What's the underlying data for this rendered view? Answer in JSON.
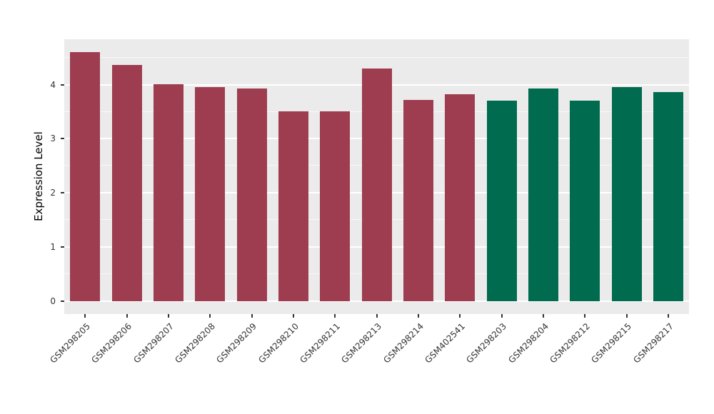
{
  "chart_data": {
    "type": "bar",
    "title": "",
    "xlabel": "",
    "ylabel": "Expression Level",
    "ylim": [
      -0.24,
      4.84
    ],
    "yticks": [
      0,
      1,
      2,
      3,
      4
    ],
    "yticks_minor": [
      0.5,
      1.5,
      2.5,
      3.5,
      4.5
    ],
    "grid": "on",
    "legend": "none",
    "panel_bg": "#ebebeb",
    "grid_color": "#ffffff",
    "bar_width_fraction": 0.72,
    "groups": {
      "red": "#9e3d50",
      "green": "#006b4e"
    },
    "bars": [
      {
        "label": "GSM298205",
        "value": 4.6,
        "group": "red"
      },
      {
        "label": "GSM298206",
        "value": 4.37,
        "group": "red"
      },
      {
        "label": "GSM298207",
        "value": 4.01,
        "group": "red"
      },
      {
        "label": "GSM298208",
        "value": 3.96,
        "group": "red"
      },
      {
        "label": "GSM298209",
        "value": 3.93,
        "group": "red"
      },
      {
        "label": "GSM298210",
        "value": 3.51,
        "group": "red"
      },
      {
        "label": "GSM298211",
        "value": 3.51,
        "group": "red"
      },
      {
        "label": "GSM298213",
        "value": 4.3,
        "group": "red"
      },
      {
        "label": "GSM298214",
        "value": 3.72,
        "group": "red"
      },
      {
        "label": "GSM402541",
        "value": 3.82,
        "group": "red"
      },
      {
        "label": "GSM298203",
        "value": 3.71,
        "group": "green"
      },
      {
        "label": "GSM298204",
        "value": 3.93,
        "group": "green"
      },
      {
        "label": "GSM298212",
        "value": 3.7,
        "group": "green"
      },
      {
        "label": "GSM298215",
        "value": 3.96,
        "group": "green"
      },
      {
        "label": "GSM298217",
        "value": 3.87,
        "group": "green"
      }
    ]
  }
}
